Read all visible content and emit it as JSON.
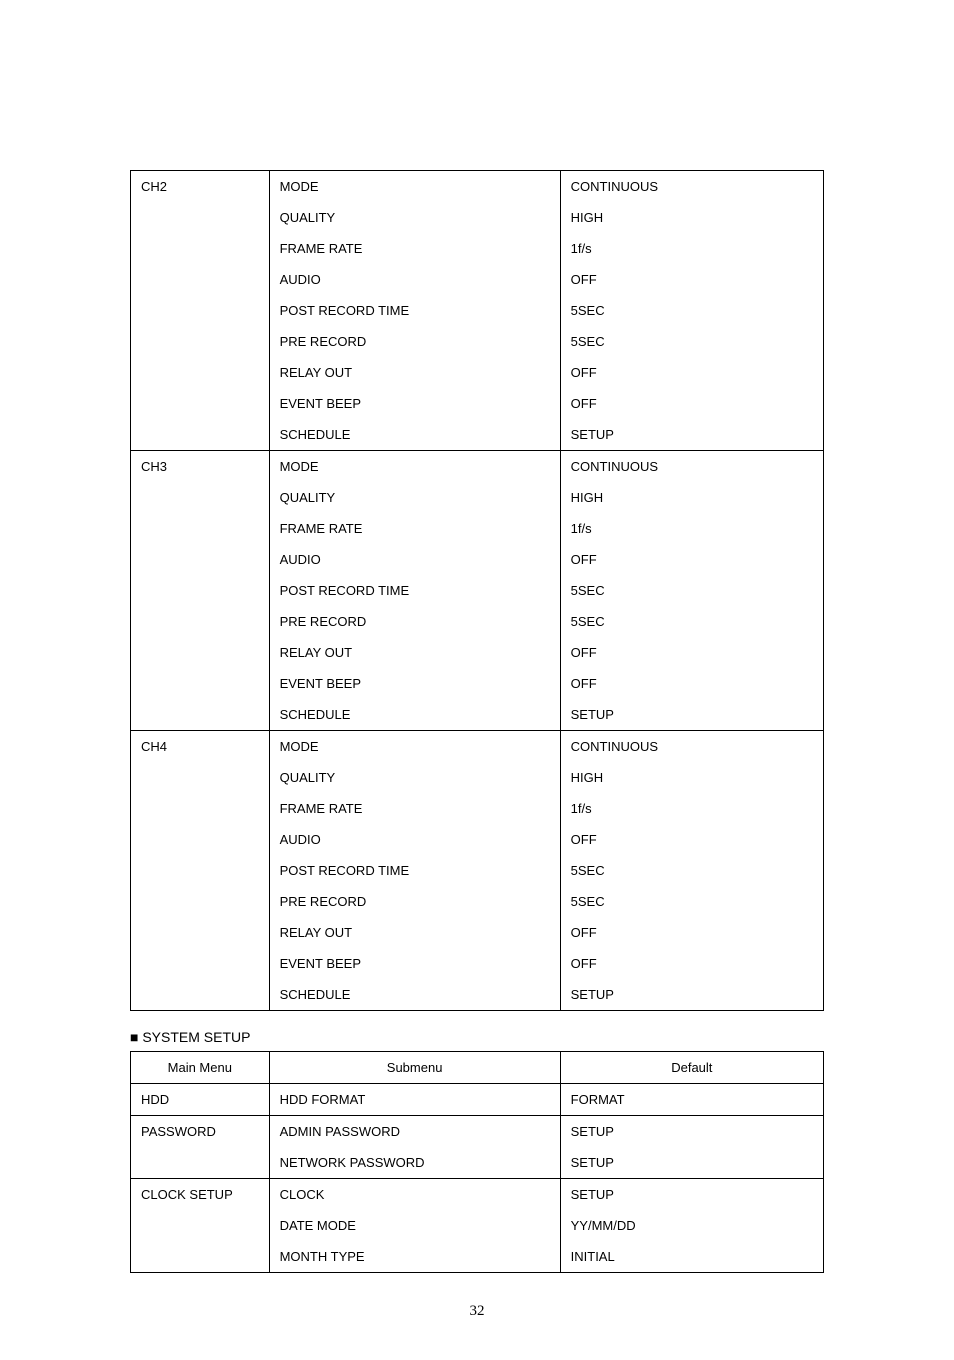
{
  "table1": {
    "groups": [
      {
        "label": "CH2",
        "rows": [
          {
            "submenu": "MODE",
            "default": "CONTINUOUS"
          },
          {
            "submenu": "QUALITY",
            "default": "HIGH"
          },
          {
            "submenu": "FRAME RATE",
            "default": "1f/s"
          },
          {
            "submenu": "AUDIO",
            "default": "OFF"
          },
          {
            "submenu": "POST RECORD TIME",
            "default": "5SEC"
          },
          {
            "submenu": "PRE RECORD",
            "default": "5SEC"
          },
          {
            "submenu": "RELAY OUT",
            "default": "OFF"
          },
          {
            "submenu": "EVENT BEEP",
            "default": "OFF"
          },
          {
            "submenu": "SCHEDULE",
            "default": "SETUP"
          }
        ]
      },
      {
        "label": "CH3",
        "rows": [
          {
            "submenu": "MODE",
            "default": "CONTINUOUS"
          },
          {
            "submenu": "QUALITY",
            "default": "HIGH"
          },
          {
            "submenu": "FRAME RATE",
            "default": "1f/s"
          },
          {
            "submenu": "AUDIO",
            "default": "OFF"
          },
          {
            "submenu": "POST RECORD TIME",
            "default": "5SEC"
          },
          {
            "submenu": "PRE RECORD",
            "default": "5SEC"
          },
          {
            "submenu": "RELAY OUT",
            "default": "OFF"
          },
          {
            "submenu": "EVENT BEEP",
            "default": "OFF"
          },
          {
            "submenu": "SCHEDULE",
            "default": "SETUP"
          }
        ]
      },
      {
        "label": "CH4",
        "rows": [
          {
            "submenu": "MODE",
            "default": "CONTINUOUS"
          },
          {
            "submenu": "QUALITY",
            "default": "HIGH"
          },
          {
            "submenu": "FRAME RATE",
            "default": "1f/s"
          },
          {
            "submenu": "AUDIO",
            "default": "OFF"
          },
          {
            "submenu": "POST RECORD TIME",
            "default": "5SEC"
          },
          {
            "submenu": "PRE RECORD",
            "default": "5SEC"
          },
          {
            "submenu": "RELAY OUT",
            "default": "OFF"
          },
          {
            "submenu": "EVENT BEEP",
            "default": "OFF"
          },
          {
            "submenu": "SCHEDULE",
            "default": "SETUP"
          }
        ]
      }
    ]
  },
  "section2": {
    "heading": "■ SYSTEM SETUP"
  },
  "table2": {
    "columns": [
      "Main Menu",
      "Submenu",
      "Default"
    ],
    "groups": [
      {
        "label": "HDD",
        "rows": [
          {
            "submenu": "HDD FORMAT",
            "default": "FORMAT"
          }
        ]
      },
      {
        "label": "PASSWORD",
        "rows": [
          {
            "submenu": "ADMIN PASSWORD",
            "default": "SETUP"
          },
          {
            "submenu": "NETWORK PASSWORD",
            "default": "SETUP"
          }
        ]
      },
      {
        "label": "CLOCK SETUP",
        "rows": [
          {
            "submenu": "CLOCK",
            "default": "SETUP"
          },
          {
            "submenu": "DATE MODE",
            "default": "YY/MM/DD"
          },
          {
            "submenu": "MONTH TYPE",
            "default": "INITIAL"
          }
        ]
      }
    ]
  },
  "pageNumber": "32",
  "style": {
    "border_color": "#000000",
    "background_color": "#ffffff",
    "cell_font_size": 13,
    "heading_font_size": 14,
    "page_number_font_size": 15
  }
}
